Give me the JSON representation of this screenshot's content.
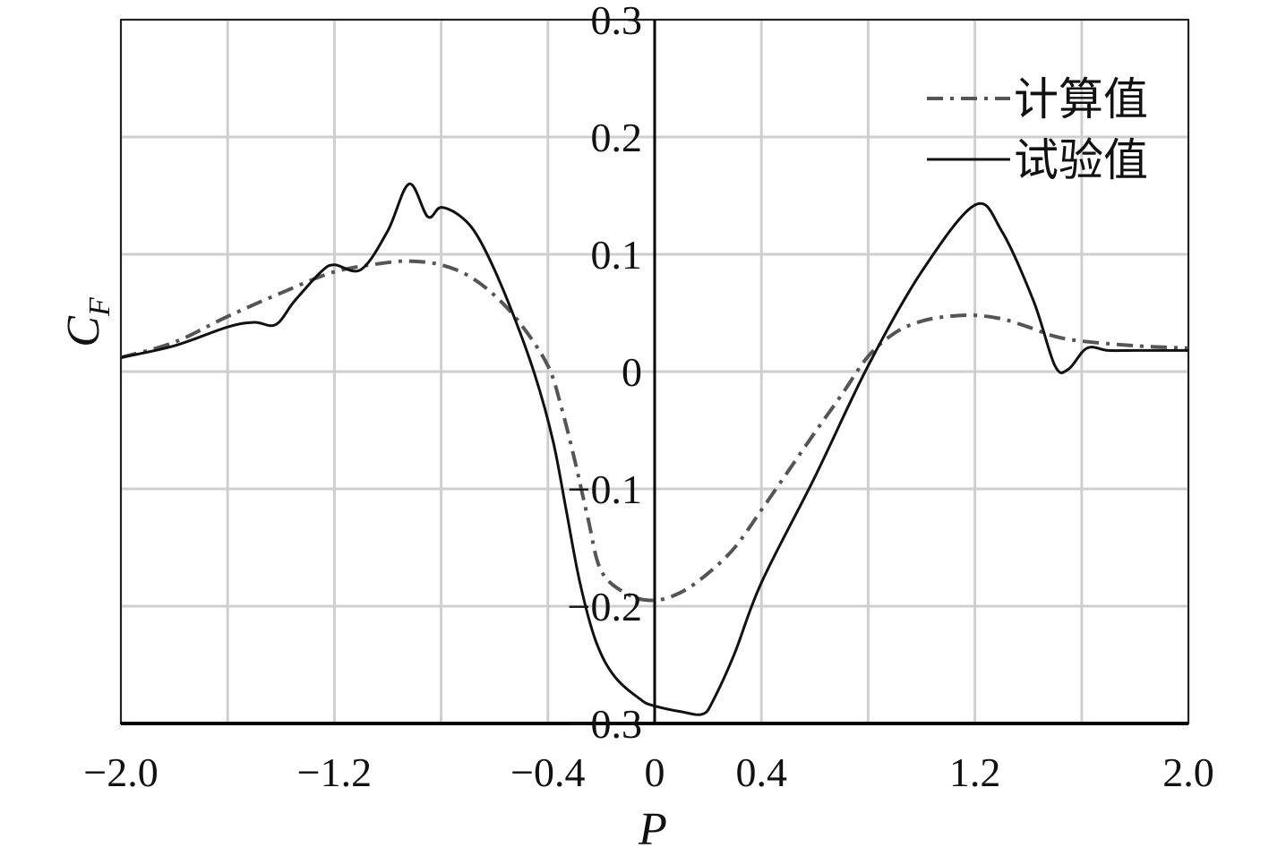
{
  "chart_data": {
    "type": "line",
    "title": "",
    "xlabel": "P",
    "ylabel_main": "C",
    "ylabel_sub": "F",
    "xlim": [
      -2.0,
      2.0
    ],
    "ylim": [
      -0.3,
      0.3
    ],
    "x_ticks": [
      -2.0,
      -1.6,
      -1.2,
      -0.8,
      -0.4,
      0,
      0.4,
      0.8,
      1.2,
      1.6,
      2.0
    ],
    "x_tick_labels": [
      {
        "value": -2.0,
        "label": "-2.0"
      },
      {
        "value": -1.2,
        "label": "-1.2"
      },
      {
        "value": -0.4,
        "label": "-0.4"
      },
      {
        "value": 0,
        "label": "0"
      },
      {
        "value": 0.4,
        "label": "0.4"
      },
      {
        "value": 1.2,
        "label": "1.2"
      },
      {
        "value": 2.0,
        "label": "2.0"
      }
    ],
    "y_ticks": [
      -0.3,
      -0.2,
      -0.1,
      0,
      0.1,
      0.2,
      0.3
    ],
    "y_tick_labels": [
      {
        "value": 0.3,
        "label": "0.3"
      },
      {
        "value": 0.2,
        "label": "0.2"
      },
      {
        "value": 0.1,
        "label": "0.1"
      },
      {
        "value": 0,
        "label": "0"
      },
      {
        "value": -0.1,
        "label": "-0.1"
      },
      {
        "value": -0.2,
        "label": "-0.2"
      },
      {
        "value": -0.3,
        "label": "-0.3"
      }
    ],
    "grid": true,
    "legend_position": "top-right",
    "series": [
      {
        "name": "计算值",
        "style": "dash-dot",
        "color": "#555555",
        "x": [
          -2.0,
          -1.8,
          -1.6,
          -1.4,
          -1.2,
          -1.0,
          -0.9,
          -0.8,
          -0.7,
          -0.6,
          -0.5,
          -0.4,
          -0.35,
          -0.3,
          -0.25,
          -0.2,
          -0.1,
          0.0,
          0.1,
          0.2,
          0.3,
          0.4,
          0.5,
          0.6,
          0.7,
          0.8,
          0.9,
          1.0,
          1.1,
          1.2,
          1.3,
          1.4,
          1.5,
          1.6,
          1.8,
          2.0
        ],
        "y": [
          0.012,
          0.025,
          0.047,
          0.067,
          0.085,
          0.093,
          0.094,
          0.091,
          0.082,
          0.065,
          0.04,
          0.005,
          -0.03,
          -0.075,
          -0.125,
          -0.17,
          -0.19,
          -0.195,
          -0.188,
          -0.172,
          -0.15,
          -0.118,
          -0.085,
          -0.052,
          -0.02,
          0.013,
          0.033,
          0.043,
          0.047,
          0.048,
          0.045,
          0.038,
          0.03,
          0.026,
          0.022,
          0.02
        ]
      },
      {
        "name": "试验值",
        "style": "solid",
        "color": "#111111",
        "x": [
          -2.0,
          -1.8,
          -1.6,
          -1.5,
          -1.42,
          -1.35,
          -1.25,
          -1.2,
          -1.1,
          -1.0,
          -0.92,
          -0.85,
          -0.8,
          -0.72,
          -0.65,
          -0.55,
          -0.45,
          -0.38,
          -0.33,
          -0.28,
          -0.22,
          -0.15,
          -0.05,
          0.0,
          0.1,
          0.18,
          0.22,
          0.3,
          0.4,
          0.6,
          0.8,
          1.0,
          1.2,
          1.3,
          1.42,
          1.5,
          1.55,
          1.62,
          1.7,
          1.8,
          2.0
        ],
        "y": [
          0.012,
          0.022,
          0.038,
          0.042,
          0.04,
          0.06,
          0.085,
          0.091,
          0.087,
          0.12,
          0.16,
          0.132,
          0.14,
          0.131,
          0.11,
          0.06,
          -0.002,
          -0.06,
          -0.12,
          -0.18,
          -0.23,
          -0.26,
          -0.28,
          -0.285,
          -0.29,
          -0.292,
          -0.28,
          -0.24,
          -0.18,
          -0.09,
          0.005,
          0.085,
          0.142,
          0.12,
          0.06,
          0.005,
          0.002,
          0.02,
          0.018,
          0.018,
          0.018
        ]
      }
    ]
  }
}
